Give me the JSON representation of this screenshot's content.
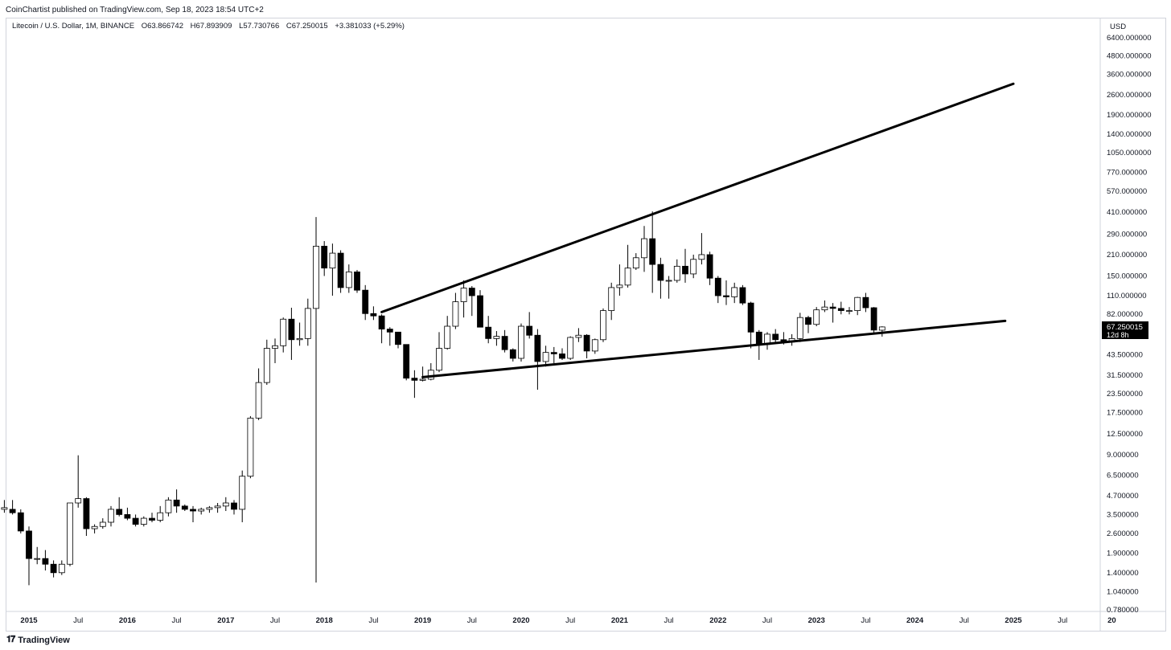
{
  "header": {
    "published": "CoinChartist published on TradingView.com, Sep 18, 2023 18:54 UTC+2"
  },
  "legend": {
    "symbol": "Litecoin / U.S. Dollar, 1M, BINANCE",
    "open": "O63.866742",
    "high": "H67.893909",
    "low": "L57.730766",
    "close": "C67.250015",
    "change": "+3.381033 (+5.29%)"
  },
  "price_axis": {
    "currency": "USD",
    "last_price": "67.250015",
    "countdown": "12d 8h"
  },
  "footer": {
    "brand": "TradingView",
    "logo_icon": "tradingview-logo-icon"
  },
  "colors": {
    "up_fill": "#ffffff",
    "down_fill": "#000000",
    "candle_stroke": "#000000",
    "trendline": "#000000",
    "axis_text": "#131722"
  },
  "chart_data": {
    "type": "candlestick",
    "title": "Litecoin / U.S. Dollar, 1M, BINANCE",
    "y_scale": "log",
    "ylim": [
      0.7,
      6400
    ],
    "y_ticks": [
      "6400.000000",
      "4800.000000",
      "3600.000000",
      "2600.000000",
      "1900.000000",
      "1400.000000",
      "1050.000000",
      "770.000000",
      "570.000000",
      "410.000000",
      "290.000000",
      "210.000000",
      "150.000000",
      "110.000000",
      "82.000000",
      "43.500000",
      "31.500000",
      "23.500000",
      "17.500000",
      "12.500000",
      "9.000000",
      "6.500000",
      "4.700000",
      "3.500000",
      "2.600000",
      "1.900000",
      "1.400000",
      "1.040000",
      "0.780000"
    ],
    "x_ticks": [
      {
        "label": "2015",
        "date": "2015-01",
        "bold": true
      },
      {
        "label": "Jul",
        "date": "2015-07",
        "bold": false
      },
      {
        "label": "2016",
        "date": "2016-01",
        "bold": true
      },
      {
        "label": "Jul",
        "date": "2016-07",
        "bold": false
      },
      {
        "label": "2017",
        "date": "2017-01",
        "bold": true
      },
      {
        "label": "Jul",
        "date": "2017-07",
        "bold": false
      },
      {
        "label": "2018",
        "date": "2018-01",
        "bold": true
      },
      {
        "label": "Jul",
        "date": "2018-07",
        "bold": false
      },
      {
        "label": "2019",
        "date": "2019-01",
        "bold": true
      },
      {
        "label": "Jul",
        "date": "2019-07",
        "bold": false
      },
      {
        "label": "2020",
        "date": "2020-01",
        "bold": true
      },
      {
        "label": "Jul",
        "date": "2020-07",
        "bold": false
      },
      {
        "label": "2021",
        "date": "2021-01",
        "bold": true
      },
      {
        "label": "Jul",
        "date": "2021-07",
        "bold": false
      },
      {
        "label": "2022",
        "date": "2022-01",
        "bold": true
      },
      {
        "label": "Jul",
        "date": "2022-07",
        "bold": false
      },
      {
        "label": "2023",
        "date": "2023-01",
        "bold": true
      },
      {
        "label": "Jul",
        "date": "2023-07",
        "bold": false
      },
      {
        "label": "2024",
        "date": "2024-01",
        "bold": true
      },
      {
        "label": "Jul",
        "date": "2024-07",
        "bold": false
      },
      {
        "label": "2025",
        "date": "2025-01",
        "bold": true
      },
      {
        "label": "Jul",
        "date": "2025-07",
        "bold": false
      },
      {
        "label": "20",
        "date": "2026-01",
        "bold": true
      }
    ],
    "candles": [
      {
        "t": "2014-10",
        "o": 3.8,
        "h": 4.4,
        "l": 3.6,
        "c": 3.9
      },
      {
        "t": "2014-11",
        "o": 3.8,
        "h": 4.4,
        "l": 3.5,
        "c": 3.6
      },
      {
        "t": "2014-12",
        "o": 3.6,
        "h": 3.8,
        "l": 2.6,
        "c": 2.7
      },
      {
        "t": "2015-01",
        "o": 2.7,
        "h": 2.9,
        "l": 1.15,
        "c": 1.75
      },
      {
        "t": "2015-02",
        "o": 1.75,
        "h": 2.1,
        "l": 1.6,
        "c": 1.75
      },
      {
        "t": "2015-03",
        "o": 1.75,
        "h": 2.0,
        "l": 1.45,
        "c": 1.6
      },
      {
        "t": "2015-04",
        "o": 1.6,
        "h": 1.7,
        "l": 1.3,
        "c": 1.4
      },
      {
        "t": "2015-05",
        "o": 1.4,
        "h": 1.7,
        "l": 1.35,
        "c": 1.6
      },
      {
        "t": "2015-06",
        "o": 1.6,
        "h": 4.2,
        "l": 1.55,
        "c": 4.2
      },
      {
        "t": "2015-07",
        "o": 4.2,
        "h": 8.9,
        "l": 3.9,
        "c": 4.5
      },
      {
        "t": "2015-08",
        "o": 4.5,
        "h": 4.6,
        "l": 2.5,
        "c": 2.8
      },
      {
        "t": "2015-09",
        "o": 2.8,
        "h": 3.0,
        "l": 2.6,
        "c": 2.9
      },
      {
        "t": "2015-10",
        "o": 2.9,
        "h": 3.3,
        "l": 2.8,
        "c": 3.1
      },
      {
        "t": "2015-11",
        "o": 3.1,
        "h": 4.0,
        "l": 2.9,
        "c": 3.8
      },
      {
        "t": "2015-12",
        "o": 3.8,
        "h": 4.6,
        "l": 3.4,
        "c": 3.5
      },
      {
        "t": "2016-01",
        "o": 3.5,
        "h": 3.9,
        "l": 3.2,
        "c": 3.3
      },
      {
        "t": "2016-02",
        "o": 3.3,
        "h": 3.5,
        "l": 2.9,
        "c": 3.0
      },
      {
        "t": "2016-03",
        "o": 3.0,
        "h": 3.4,
        "l": 2.9,
        "c": 3.3
      },
      {
        "t": "2016-04",
        "o": 3.3,
        "h": 3.6,
        "l": 3.1,
        "c": 3.2
      },
      {
        "t": "2016-05",
        "o": 3.2,
        "h": 4.0,
        "l": 3.1,
        "c": 3.6
      },
      {
        "t": "2016-06",
        "o": 3.6,
        "h": 4.6,
        "l": 3.4,
        "c": 4.4
      },
      {
        "t": "2016-07",
        "o": 4.4,
        "h": 5.2,
        "l": 3.6,
        "c": 4.0
      },
      {
        "t": "2016-08",
        "o": 4.0,
        "h": 4.1,
        "l": 3.7,
        "c": 3.8
      },
      {
        "t": "2016-09",
        "o": 3.8,
        "h": 4.0,
        "l": 3.1,
        "c": 3.7
      },
      {
        "t": "2016-10",
        "o": 3.7,
        "h": 3.9,
        "l": 3.5,
        "c": 3.8
      },
      {
        "t": "2016-11",
        "o": 3.8,
        "h": 4.0,
        "l": 3.6,
        "c": 3.9
      },
      {
        "t": "2016-12",
        "o": 3.9,
        "h": 4.2,
        "l": 3.6,
        "c": 4.0
      },
      {
        "t": "2017-01",
        "o": 4.0,
        "h": 4.6,
        "l": 3.7,
        "c": 4.2
      },
      {
        "t": "2017-02",
        "o": 4.2,
        "h": 4.4,
        "l": 3.5,
        "c": 3.8
      },
      {
        "t": "2017-03",
        "o": 3.8,
        "h": 7.0,
        "l": 3.1,
        "c": 6.4
      },
      {
        "t": "2017-04",
        "o": 6.4,
        "h": 16.5,
        "l": 6.2,
        "c": 16.0
      },
      {
        "t": "2017-05",
        "o": 16.0,
        "h": 35.0,
        "l": 15.5,
        "c": 28.0
      },
      {
        "t": "2017-06",
        "o": 28.0,
        "h": 55.0,
        "l": 27.0,
        "c": 48.0
      },
      {
        "t": "2017-07",
        "o": 48.0,
        "h": 56.0,
        "l": 38.0,
        "c": 50.0
      },
      {
        "t": "2017-08",
        "o": 50.0,
        "h": 78.0,
        "l": 45.0,
        "c": 76.0
      },
      {
        "t": "2017-09",
        "o": 76.0,
        "h": 91.0,
        "l": 40.0,
        "c": 55.0
      },
      {
        "t": "2017-10",
        "o": 55.0,
        "h": 72.0,
        "l": 50.0,
        "c": 56.0
      },
      {
        "t": "2017-11",
        "o": 56.0,
        "h": 105.0,
        "l": 50.0,
        "c": 90.0
      },
      {
        "t": "2017-12",
        "o": 90.0,
        "h": 380.0,
        "l": 1.2,
        "c": 240.0
      },
      {
        "t": "2018-01",
        "o": 240.0,
        "h": 260.0,
        "l": 150.0,
        "c": 170.0
      },
      {
        "t": "2018-02",
        "o": 170.0,
        "h": 250.0,
        "l": 110.0,
        "c": 215.0
      },
      {
        "t": "2018-03",
        "o": 215.0,
        "h": 225.0,
        "l": 115.0,
        "c": 125.0
      },
      {
        "t": "2018-04",
        "o": 125.0,
        "h": 180.0,
        "l": 115.0,
        "c": 160.0
      },
      {
        "t": "2018-05",
        "o": 160.0,
        "h": 165.0,
        "l": 115.0,
        "c": 120.0
      },
      {
        "t": "2018-06",
        "o": 120.0,
        "h": 130.0,
        "l": 75.0,
        "c": 83.0
      },
      {
        "t": "2018-07",
        "o": 83.0,
        "h": 93.0,
        "l": 75.0,
        "c": 80.0
      },
      {
        "t": "2018-08",
        "o": 80.0,
        "h": 82.0,
        "l": 52.0,
        "c": 65.0
      },
      {
        "t": "2018-09",
        "o": 65.0,
        "h": 67.0,
        "l": 50.0,
        "c": 62.0
      },
      {
        "t": "2018-10",
        "o": 62.0,
        "h": 62.0,
        "l": 48.0,
        "c": 51.0
      },
      {
        "t": "2018-11",
        "o": 51.0,
        "h": 51.0,
        "l": 29.0,
        "c": 30.0
      },
      {
        "t": "2018-12",
        "o": 30.0,
        "h": 34.0,
        "l": 22.0,
        "c": 29.0
      },
      {
        "t": "2019-01",
        "o": 29.0,
        "h": 36.0,
        "l": 28.5,
        "c": 29.5
      },
      {
        "t": "2019-02",
        "o": 29.5,
        "h": 38.0,
        "l": 29.0,
        "c": 34.0
      },
      {
        "t": "2019-03",
        "o": 34.0,
        "h": 62.0,
        "l": 33.0,
        "c": 48.0
      },
      {
        "t": "2019-04",
        "o": 48.0,
        "h": 80.0,
        "l": 47.0,
        "c": 68.0
      },
      {
        "t": "2019-05",
        "o": 68.0,
        "h": 115.0,
        "l": 65.0,
        "c": 100.0
      },
      {
        "t": "2019-06",
        "o": 100.0,
        "h": 140.0,
        "l": 78.0,
        "c": 124.0
      },
      {
        "t": "2019-07",
        "o": 124.0,
        "h": 128.0,
        "l": 80.0,
        "c": 110.0
      },
      {
        "t": "2019-08",
        "o": 110.0,
        "h": 120.0,
        "l": 67.0,
        "c": 67.0
      },
      {
        "t": "2019-09",
        "o": 67.0,
        "h": 80.0,
        "l": 52.0,
        "c": 56.0
      },
      {
        "t": "2019-10",
        "o": 56.0,
        "h": 63.0,
        "l": 50.0,
        "c": 58.0
      },
      {
        "t": "2019-11",
        "o": 58.0,
        "h": 64.0,
        "l": 45.0,
        "c": 47.0
      },
      {
        "t": "2019-12",
        "o": 47.0,
        "h": 48.0,
        "l": 39.0,
        "c": 41.0
      },
      {
        "t": "2020-01",
        "o": 41.0,
        "h": 71.0,
        "l": 39.0,
        "c": 68.0
      },
      {
        "t": "2020-02",
        "o": 68.0,
        "h": 85.0,
        "l": 56.0,
        "c": 59.0
      },
      {
        "t": "2020-03",
        "o": 59.0,
        "h": 65.0,
        "l": 25.0,
        "c": 39.0
      },
      {
        "t": "2020-04",
        "o": 39.0,
        "h": 50.0,
        "l": 36.0,
        "c": 45.0
      },
      {
        "t": "2020-05",
        "o": 45.0,
        "h": 49.0,
        "l": 38.0,
        "c": 44.0
      },
      {
        "t": "2020-06",
        "o": 44.0,
        "h": 48.0,
        "l": 40.0,
        "c": 41.0
      },
      {
        "t": "2020-07",
        "o": 41.0,
        "h": 58.0,
        "l": 40.0,
        "c": 57.0
      },
      {
        "t": "2020-08",
        "o": 57.0,
        "h": 66.0,
        "l": 53.0,
        "c": 59.0
      },
      {
        "t": "2020-09",
        "o": 59.0,
        "h": 60.0,
        "l": 41.0,
        "c": 46.0
      },
      {
        "t": "2020-10",
        "o": 46.0,
        "h": 56.0,
        "l": 44.0,
        "c": 55.0
      },
      {
        "t": "2020-11",
        "o": 55.0,
        "h": 90.0,
        "l": 53.0,
        "c": 87.0
      },
      {
        "t": "2020-12",
        "o": 87.0,
        "h": 135.0,
        "l": 75.0,
        "c": 125.0
      },
      {
        "t": "2021-01",
        "o": 125.0,
        "h": 180.0,
        "l": 110.0,
        "c": 130.0
      },
      {
        "t": "2021-02",
        "o": 130.0,
        "h": 245.0,
        "l": 125.0,
        "c": 170.0
      },
      {
        "t": "2021-03",
        "o": 170.0,
        "h": 215.0,
        "l": 165.0,
        "c": 200.0
      },
      {
        "t": "2021-04",
        "o": 200.0,
        "h": 330.0,
        "l": 160.0,
        "c": 270.0
      },
      {
        "t": "2021-05",
        "o": 270.0,
        "h": 415.0,
        "l": 115.0,
        "c": 180.0
      },
      {
        "t": "2021-06",
        "o": 180.0,
        "h": 200.0,
        "l": 105.0,
        "c": 140.0
      },
      {
        "t": "2021-07",
        "o": 140.0,
        "h": 150.0,
        "l": 105.0,
        "c": 140.0
      },
      {
        "t": "2021-08",
        "o": 140.0,
        "h": 195.0,
        "l": 135.0,
        "c": 175.0
      },
      {
        "t": "2021-09",
        "o": 175.0,
        "h": 230.0,
        "l": 135.0,
        "c": 155.0
      },
      {
        "t": "2021-10",
        "o": 155.0,
        "h": 210.0,
        "l": 145.0,
        "c": 195.0
      },
      {
        "t": "2021-11",
        "o": 195.0,
        "h": 295.0,
        "l": 180.0,
        "c": 210.0
      },
      {
        "t": "2021-12",
        "o": 210.0,
        "h": 220.0,
        "l": 130.0,
        "c": 145.0
      },
      {
        "t": "2022-01",
        "o": 145.0,
        "h": 150.0,
        "l": 98.0,
        "c": 110.0
      },
      {
        "t": "2022-02",
        "o": 110.0,
        "h": 140.0,
        "l": 95.0,
        "c": 108.0
      },
      {
        "t": "2022-03",
        "o": 108.0,
        "h": 135.0,
        "l": 98.0,
        "c": 125.0
      },
      {
        "t": "2022-04",
        "o": 125.0,
        "h": 130.0,
        "l": 95.0,
        "c": 98.0
      },
      {
        "t": "2022-05",
        "o": 98.0,
        "h": 100.0,
        "l": 48.0,
        "c": 62.0
      },
      {
        "t": "2022-06",
        "o": 62.0,
        "h": 64.0,
        "l": 40.0,
        "c": 51.0
      },
      {
        "t": "2022-07",
        "o": 51.0,
        "h": 62.0,
        "l": 47.0,
        "c": 60.0
      },
      {
        "t": "2022-08",
        "o": 60.0,
        "h": 65.0,
        "l": 53.0,
        "c": 55.0
      },
      {
        "t": "2022-09",
        "o": 55.0,
        "h": 62.0,
        "l": 51.0,
        "c": 53.0
      },
      {
        "t": "2022-10",
        "o": 53.0,
        "h": 60.0,
        "l": 50.0,
        "c": 56.0
      },
      {
        "t": "2022-11",
        "o": 56.0,
        "h": 84.0,
        "l": 53.0,
        "c": 78.0
      },
      {
        "t": "2022-12",
        "o": 78.0,
        "h": 80.0,
        "l": 61.0,
        "c": 70.0
      },
      {
        "t": "2023-01",
        "o": 70.0,
        "h": 92.0,
        "l": 68.0,
        "c": 88.0
      },
      {
        "t": "2023-02",
        "o": 88.0,
        "h": 102.0,
        "l": 85.0,
        "c": 92.0
      },
      {
        "t": "2023-03",
        "o": 92.0,
        "h": 98.0,
        "l": 72.0,
        "c": 90.0
      },
      {
        "t": "2023-04",
        "o": 90.0,
        "h": 100.0,
        "l": 82.0,
        "c": 87.0
      },
      {
        "t": "2023-05",
        "o": 87.0,
        "h": 92.0,
        "l": 82.0,
        "c": 87.0
      },
      {
        "t": "2023-06",
        "o": 87.0,
        "h": 108.0,
        "l": 81.0,
        "c": 107.0
      },
      {
        "t": "2023-07",
        "o": 107.0,
        "h": 115.0,
        "l": 85.0,
        "c": 91.0
      },
      {
        "t": "2023-08",
        "o": 91.0,
        "h": 92.0,
        "l": 61.0,
        "c": 64.0
      },
      {
        "t": "2023-09",
        "o": 63.866742,
        "h": 67.893909,
        "l": 57.730766,
        "c": 67.250015
      }
    ],
    "trendlines": [
      {
        "name": "upper",
        "from": {
          "t": "2018-08",
          "price": 85
        },
        "to": {
          "t": "2025-01",
          "price": 3100
        }
      },
      {
        "name": "lower",
        "from": {
          "t": "2019-01",
          "price": 30.5
        },
        "to": {
          "t": "2024-12",
          "price": 74
        }
      }
    ]
  }
}
